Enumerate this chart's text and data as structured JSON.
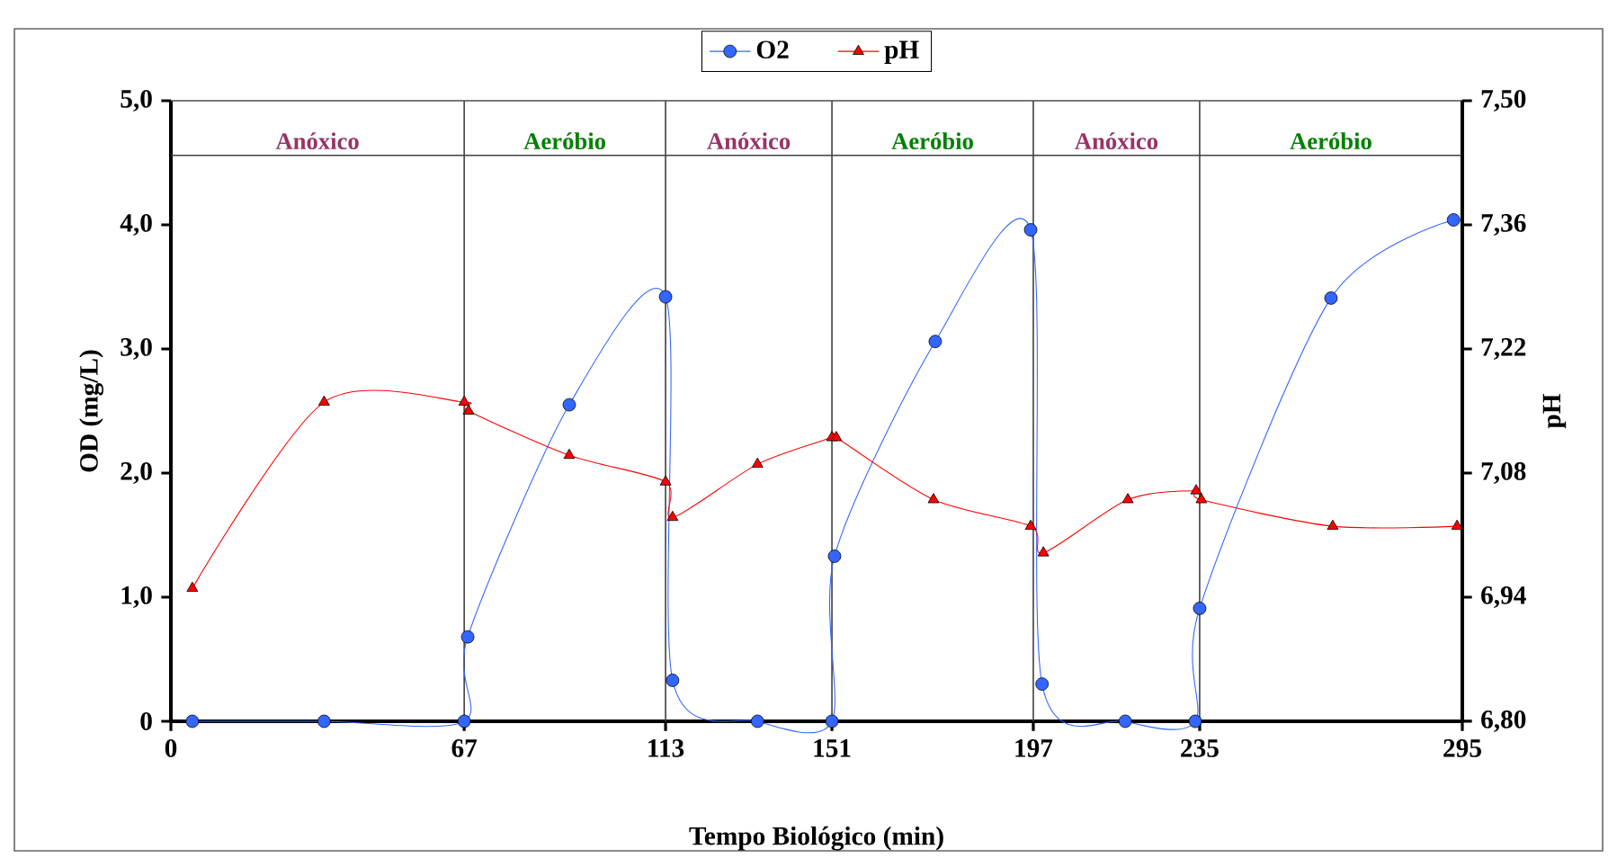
{
  "chart_data": {
    "type": "line",
    "xlabel": "Tempo Biológico (min)",
    "ylabel": "OD (mg/L)",
    "y2label": "pH",
    "xlim": [
      0,
      295
    ],
    "xticks": [
      0,
      67,
      113,
      151,
      197,
      235,
      295
    ],
    "ylim": [
      0,
      5
    ],
    "yticks": [
      {
        "value": 0,
        "label": "0"
      },
      {
        "value": 1,
        "label": "1,0"
      },
      {
        "value": 2,
        "label": "2,0"
      },
      {
        "value": 3,
        "label": "3,0"
      },
      {
        "value": 4,
        "label": "4,0"
      },
      {
        "value": 5,
        "label": "5,0"
      }
    ],
    "y2lim": [
      6.8,
      7.5
    ],
    "y2ticks": [
      {
        "value": 6.8,
        "label": "6,80"
      },
      {
        "value": 6.94,
        "label": "6,94"
      },
      {
        "value": 7.08,
        "label": "7,08"
      },
      {
        "value": 7.22,
        "label": "7,22"
      },
      {
        "value": 7.36,
        "label": "7,36"
      },
      {
        "value": 7.5,
        "label": "7,50"
      }
    ],
    "legend": "top",
    "grid": false,
    "ref_lines": [
      {
        "axis": "x",
        "value": 67,
        "color": "#404040"
      },
      {
        "axis": "x",
        "value": 113,
        "color": "#404040"
      },
      {
        "axis": "x",
        "value": 151,
        "color": "#404040"
      },
      {
        "axis": "x",
        "value": 197,
        "color": "#404040"
      },
      {
        "axis": "x",
        "value": 235,
        "color": "#404040"
      },
      {
        "axis": "y",
        "value": 4.56,
        "color": "#404040"
      }
    ],
    "annotations": [
      "Anóxico",
      "Aeróbio",
      "Anóxico",
      "Aeróbio",
      "Anóxico",
      "Aeróbio"
    ],
    "series": [
      {
        "name": "O2",
        "color": "#3366ff",
        "marker": "circle",
        "x": [
          4.9,
          35,
          67,
          67.8,
          91,
          113,
          114.6,
          134,
          151,
          151.6,
          174.6,
          196.4,
          199,
          218,
          234,
          235,
          265,
          293
        ],
        "values": [
          0,
          0,
          0,
          0.68,
          2.55,
          3.42,
          0.33,
          0,
          0,
          1.33,
          3.06,
          3.96,
          0.3,
          0,
          0,
          0.91,
          3.41,
          4.04
        ]
      },
      {
        "name": "pH",
        "color": "#ff0000",
        "marker": "triangle",
        "axis": "y2",
        "x": [
          4.9,
          35,
          67,
          68,
          91,
          113,
          114.6,
          134,
          151,
          152,
          174.2,
          196.4,
          199.3,
          218.6,
          234.2,
          235.4,
          265.4,
          293.8
        ],
        "values": [
          6.95,
          7.16,
          7.16,
          7.15,
          7.1,
          7.07,
          7.03,
          7.09,
          7.12,
          7.12,
          7.05,
          7.02,
          6.99,
          7.05,
          7.06,
          7.05,
          7.02,
          7.02
        ]
      }
    ]
  }
}
